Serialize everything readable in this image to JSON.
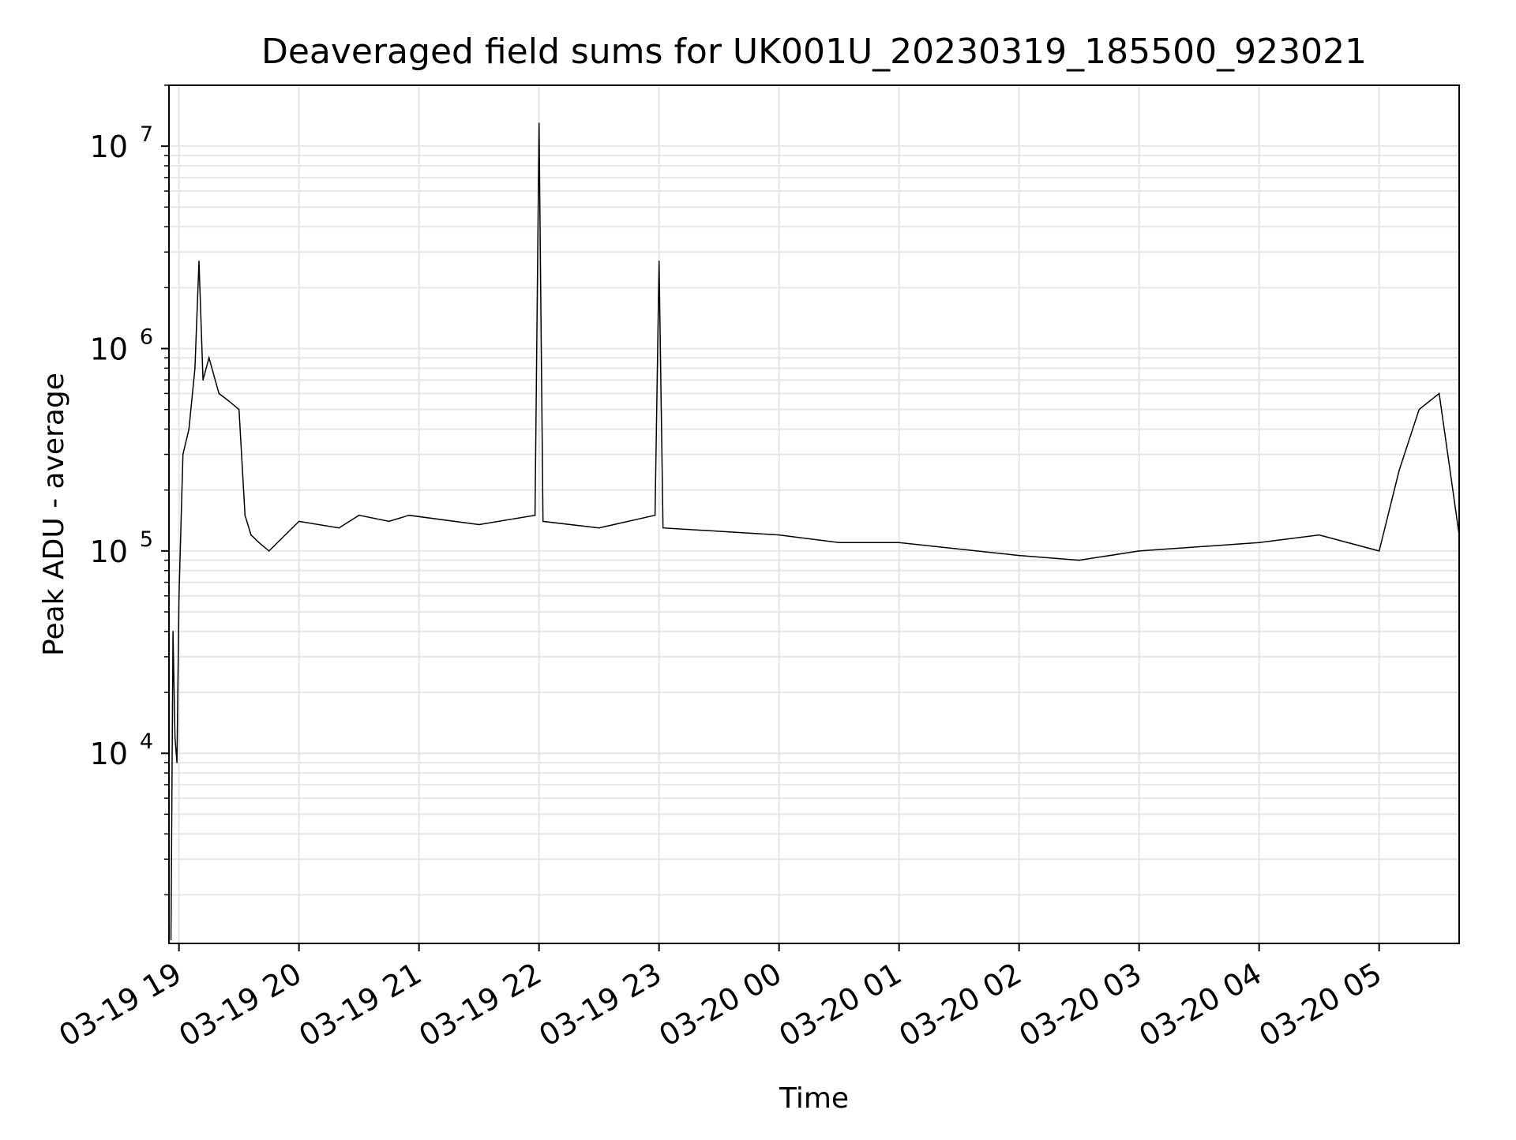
{
  "chart_data": {
    "type": "line",
    "title": "Deaveraged field sums for UK001U_20230319_185500_923021",
    "xlabel": "Time",
    "ylabel": "Peak ADU - average",
    "yscale": "log",
    "ylim": [
      1150,
      20000000
    ],
    "xlim": [
      "2023-03-19 18:55",
      "2023-03-20 05:40"
    ],
    "grid": true,
    "line_color": "#000000",
    "grid_color": "#e6e6e6",
    "x_tick_labels": [
      "03-19 19",
      "03-19 20",
      "03-19 21",
      "03-19 22",
      "03-19 23",
      "03-20 00",
      "03-20 01",
      "03-20 02",
      "03-20 03",
      "03-20 04",
      "03-20 05"
    ],
    "y_ticks": [
      {
        "value": 10000,
        "base": "10",
        "exp": "4"
      },
      {
        "value": 100000,
        "base": "10",
        "exp": "5"
      },
      {
        "value": 1000000,
        "base": "10",
        "exp": "6"
      },
      {
        "value": 10000000,
        "base": "10",
        "exp": "7"
      }
    ],
    "series": [
      {
        "x": [
          "2023-03-19 18:56",
          "2023-03-19 18:57",
          "2023-03-19 18:58",
          "2023-03-19 18:59",
          "2023-03-19 19:00",
          "2023-03-19 19:02",
          "2023-03-19 19:05",
          "2023-03-19 19:08",
          "2023-03-19 19:10",
          "2023-03-19 19:12",
          "2023-03-19 19:15",
          "2023-03-19 19:20",
          "2023-03-19 19:25",
          "2023-03-19 19:30",
          "2023-03-19 19:33",
          "2023-03-19 19:36",
          "2023-03-19 19:40",
          "2023-03-19 19:45",
          "2023-03-19 20:00",
          "2023-03-19 20:20",
          "2023-03-19 20:30",
          "2023-03-19 20:45",
          "2023-03-19 20:55",
          "2023-03-19 21:30",
          "2023-03-19 21:58",
          "2023-03-19 22:00",
          "2023-03-19 22:02",
          "2023-03-19 22:30",
          "2023-03-19 22:58",
          "2023-03-19 23:00",
          "2023-03-19 23:02",
          "2023-03-20 00:00",
          "2023-03-20 00:30",
          "2023-03-20 01:00",
          "2023-03-20 02:00",
          "2023-03-20 02:30",
          "2023-03-20 03:00",
          "2023-03-20 04:00",
          "2023-03-20 04:30",
          "2023-03-20 05:00",
          "2023-03-20 05:10",
          "2023-03-20 05:20",
          "2023-03-20 05:30",
          "2023-03-20 05:40"
        ],
        "y": [
          1200,
          40000,
          12000,
          9000,
          60000,
          300000,
          400000,
          800000,
          2700000,
          700000,
          900000,
          600000,
          550000,
          500000,
          150000,
          120000,
          110000,
          100000,
          140000,
          130000,
          150000,
          140000,
          150000,
          135000,
          150000,
          13000000,
          140000,
          130000,
          150000,
          2700000,
          130000,
          120000,
          110000,
          110000,
          95000,
          90000,
          100000,
          110000,
          120000,
          100000,
          250000,
          500000,
          600000,
          120000
        ]
      }
    ]
  }
}
